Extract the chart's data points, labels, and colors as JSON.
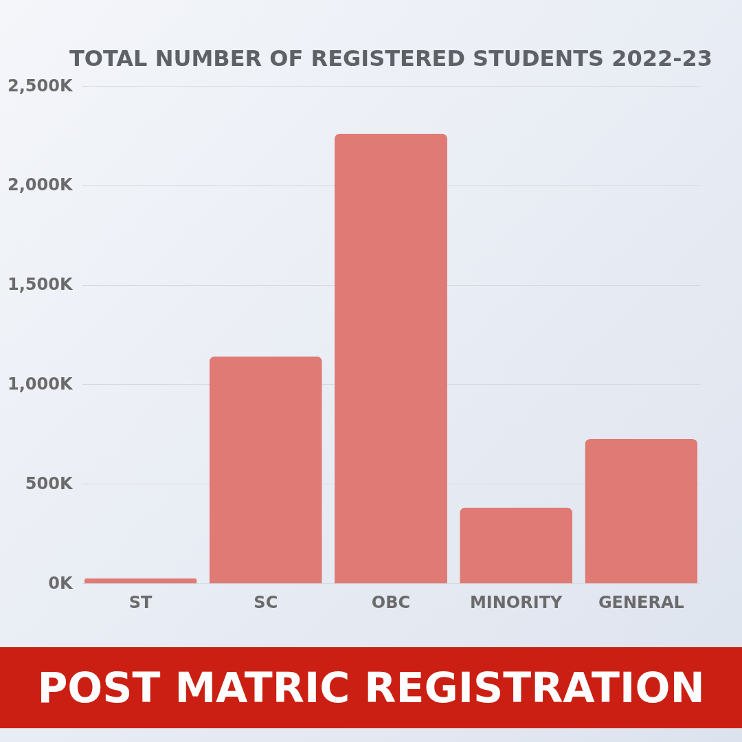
{
  "chart_data": {
    "type": "bar",
    "title": "TOTAL NUMBER OF REGISTERED STUDENTS 2022-23",
    "categories": [
      "ST",
      "SC",
      "OBC",
      "MINORITY",
      "GENERAL"
    ],
    "values": [
      25,
      1140,
      2260,
      380,
      725
    ],
    "color": "#e07a74",
    "ylim": [
      0,
      2500
    ],
    "yticks": [
      {
        "value": 0,
        "label": "0K"
      },
      {
        "value": 500,
        "label": "500K"
      },
      {
        "value": 1000,
        "label": "1,000K"
      },
      {
        "value": 1500,
        "label": "1,500K"
      },
      {
        "value": 2000,
        "label": "2,000K"
      },
      {
        "value": 2500,
        "label": "2,500K"
      }
    ],
    "grid": "y",
    "annotations": [
      "POST MATRIC REGISTRATION"
    ]
  }
}
